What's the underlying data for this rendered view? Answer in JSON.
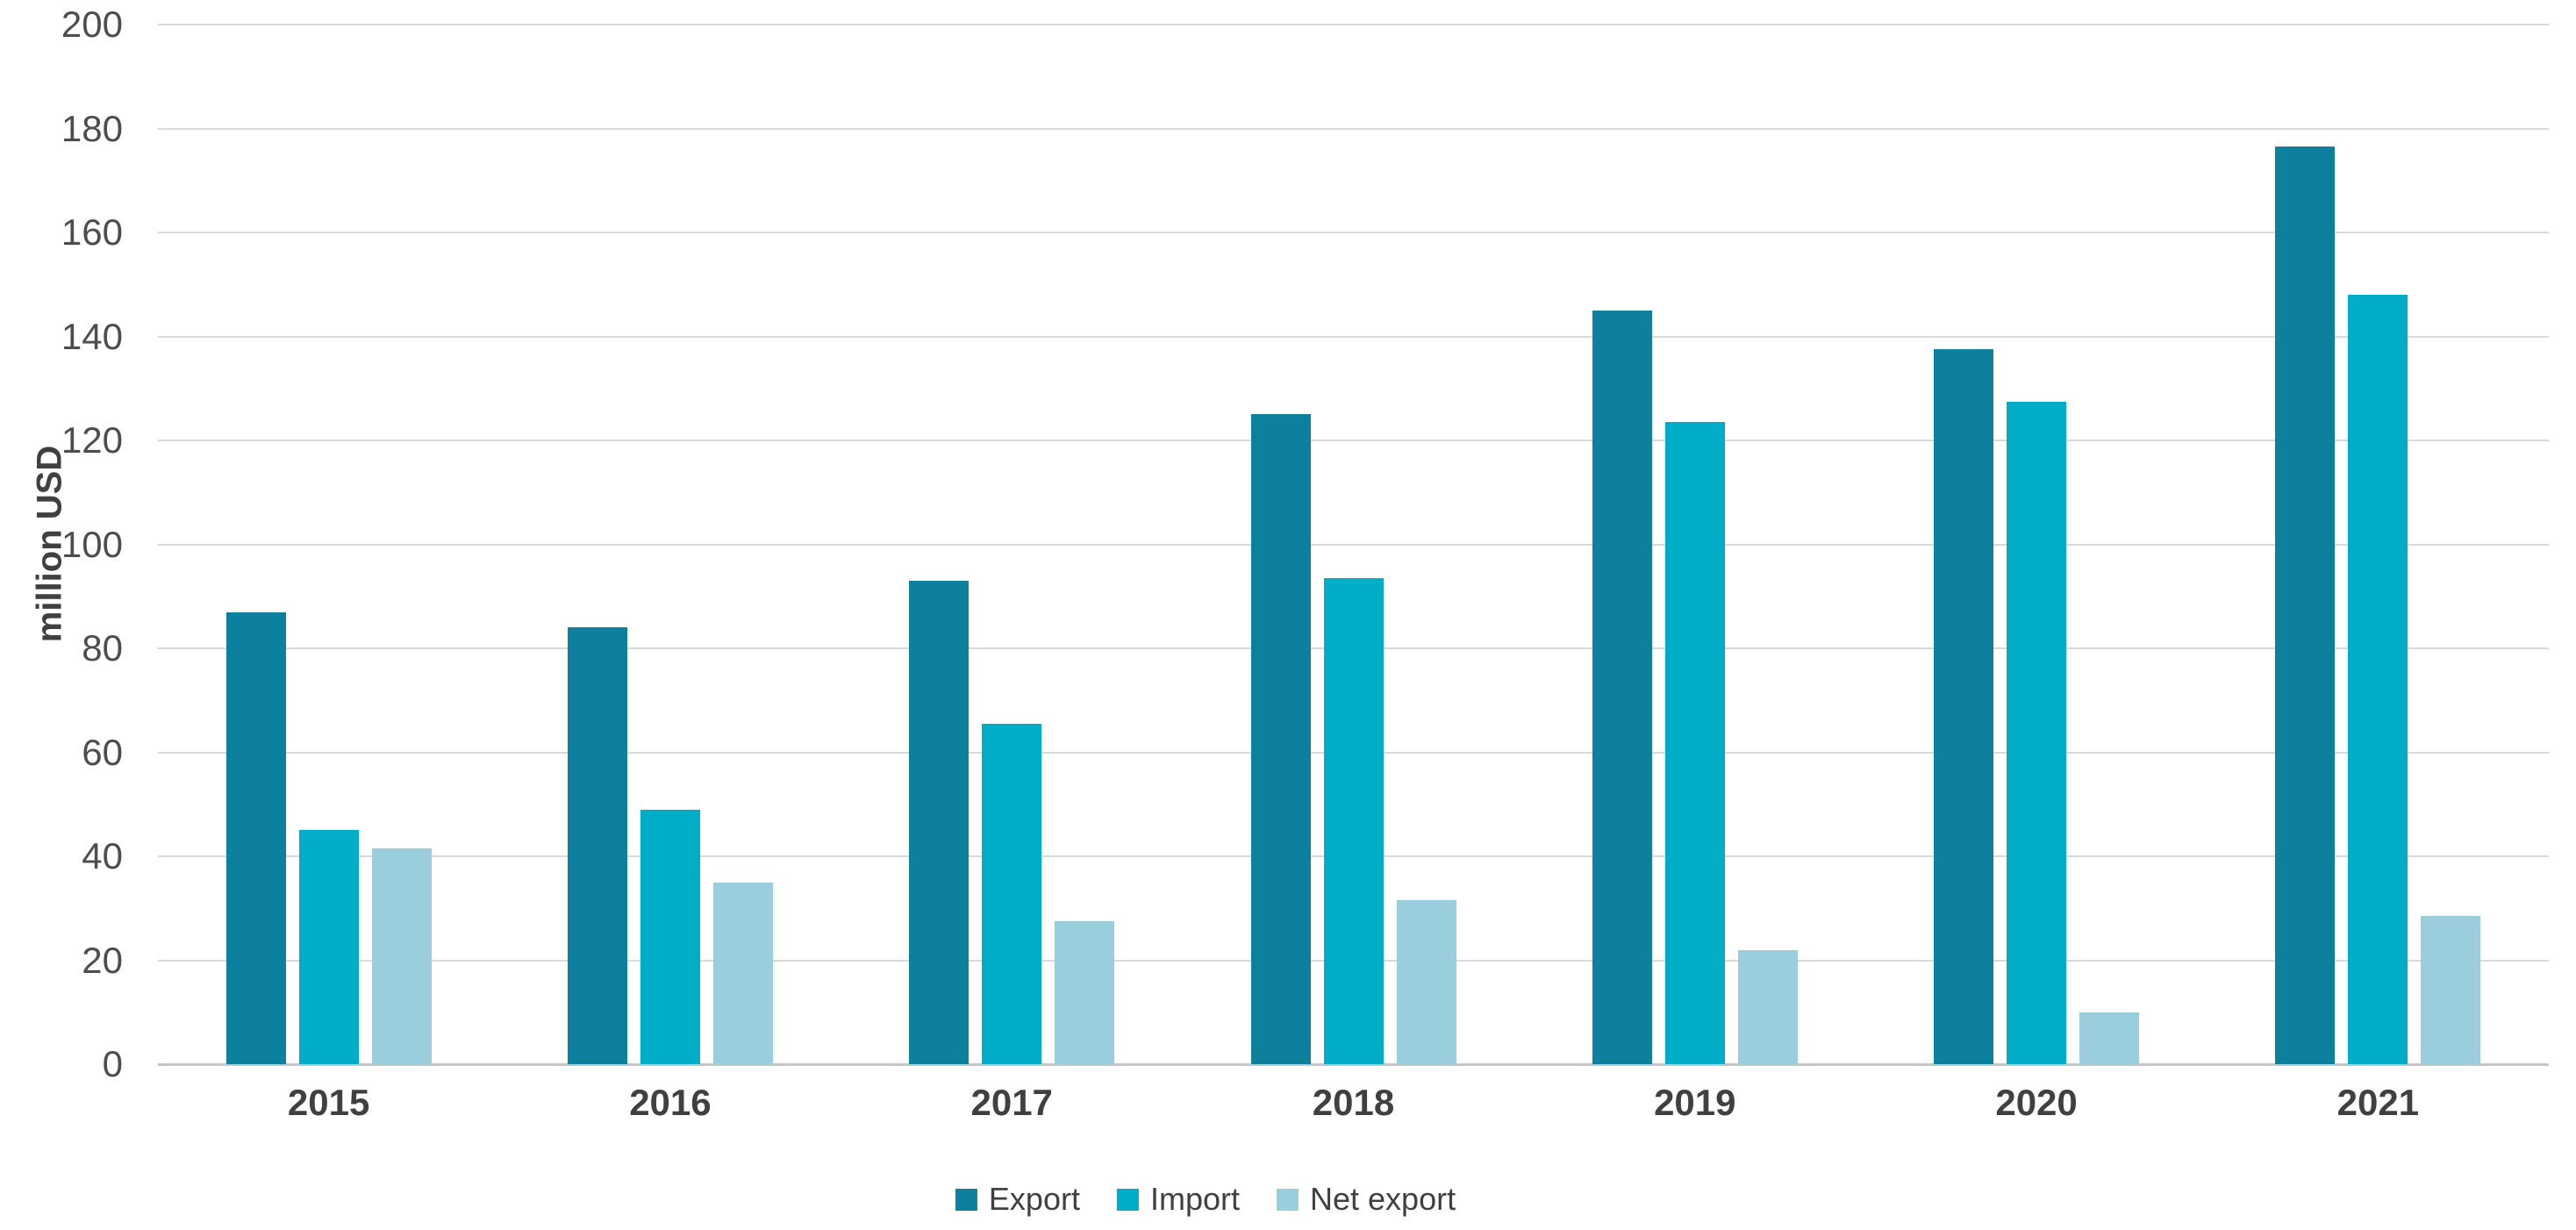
{
  "chart_data": {
    "type": "bar",
    "title": "",
    "ylabel": "million USD",
    "xlabel": "",
    "categories": [
      "2015",
      "2016",
      "2017",
      "2018",
      "2019",
      "2020",
      "2021"
    ],
    "series": [
      {
        "name": "Export",
        "color": "#0c809c",
        "values": [
          87,
          84,
          93,
          125,
          145,
          137.5,
          176.5
        ]
      },
      {
        "name": "Import",
        "color": "#00adc6",
        "values": [
          45,
          49,
          65.5,
          93.5,
          123.5,
          127.5,
          148
        ]
      },
      {
        "name": "Net export",
        "color": "#9acedd",
        "values": [
          41.5,
          35,
          27.5,
          31.5,
          22,
          10,
          28.5
        ]
      }
    ],
    "ylim": [
      0,
      200
    ],
    "y_ticks": [
      0,
      20,
      40,
      60,
      80,
      100,
      120,
      140,
      160,
      180,
      200
    ],
    "grid": true,
    "legend_position": "bottom",
    "colors": {
      "gridline": "#d9d9d9",
      "axis_line": "#c6c6c6",
      "tick_text": "#4d4d4d",
      "label_text": "#404040"
    }
  }
}
